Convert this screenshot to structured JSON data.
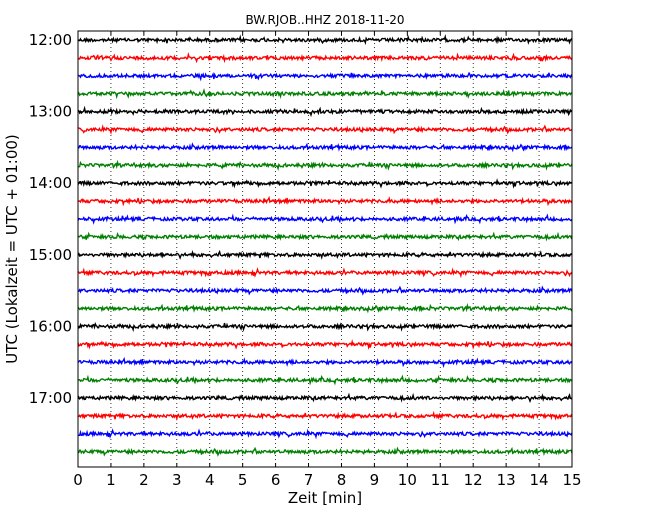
{
  "chart_data": {
    "type": "line",
    "title": "BW.RJOB..HHZ 2018-11-20",
    "xlabel": "Zeit  [min]",
    "ylabel": "UTC (Lokalzeit = UTC + 01:00)",
    "xlim": [
      0,
      15
    ],
    "x_ticks": [
      "0",
      "1",
      "2",
      "3",
      "4",
      "5",
      "6",
      "7",
      "8",
      "9",
      "10",
      "11",
      "12",
      "13",
      "14",
      "15"
    ],
    "y_tick_labels": [
      "12:00",
      "13:00",
      "14:00",
      "15:00",
      "16:00",
      "17:00"
    ],
    "grid": "vertical dotted lines at each minute",
    "trace_interval_minutes": 15,
    "traces": [
      {
        "start": "12:00",
        "color": "#000000"
      },
      {
        "start": "12:15",
        "color": "#ff0000"
      },
      {
        "start": "12:30",
        "color": "#0000ff"
      },
      {
        "start": "12:45",
        "color": "#008000"
      },
      {
        "start": "13:00",
        "color": "#000000"
      },
      {
        "start": "13:15",
        "color": "#ff0000"
      },
      {
        "start": "13:30",
        "color": "#0000ff"
      },
      {
        "start": "13:45",
        "color": "#008000"
      },
      {
        "start": "14:00",
        "color": "#000000"
      },
      {
        "start": "14:15",
        "color": "#ff0000"
      },
      {
        "start": "14:30",
        "color": "#0000ff"
      },
      {
        "start": "14:45",
        "color": "#008000"
      },
      {
        "start": "15:00",
        "color": "#000000"
      },
      {
        "start": "15:15",
        "color": "#ff0000"
      },
      {
        "start": "15:30",
        "color": "#0000ff"
      },
      {
        "start": "15:45",
        "color": "#008000"
      },
      {
        "start": "16:00",
        "color": "#000000"
      },
      {
        "start": "16:15",
        "color": "#ff0000"
      },
      {
        "start": "16:30",
        "color": "#0000ff"
      },
      {
        "start": "16:45",
        "color": "#008000"
      },
      {
        "start": "17:00",
        "color": "#000000"
      },
      {
        "start": "17:15",
        "color": "#ff0000"
      },
      {
        "start": "17:30",
        "color": "#0000ff"
      },
      {
        "start": "17:45",
        "color": "#008000"
      }
    ]
  }
}
